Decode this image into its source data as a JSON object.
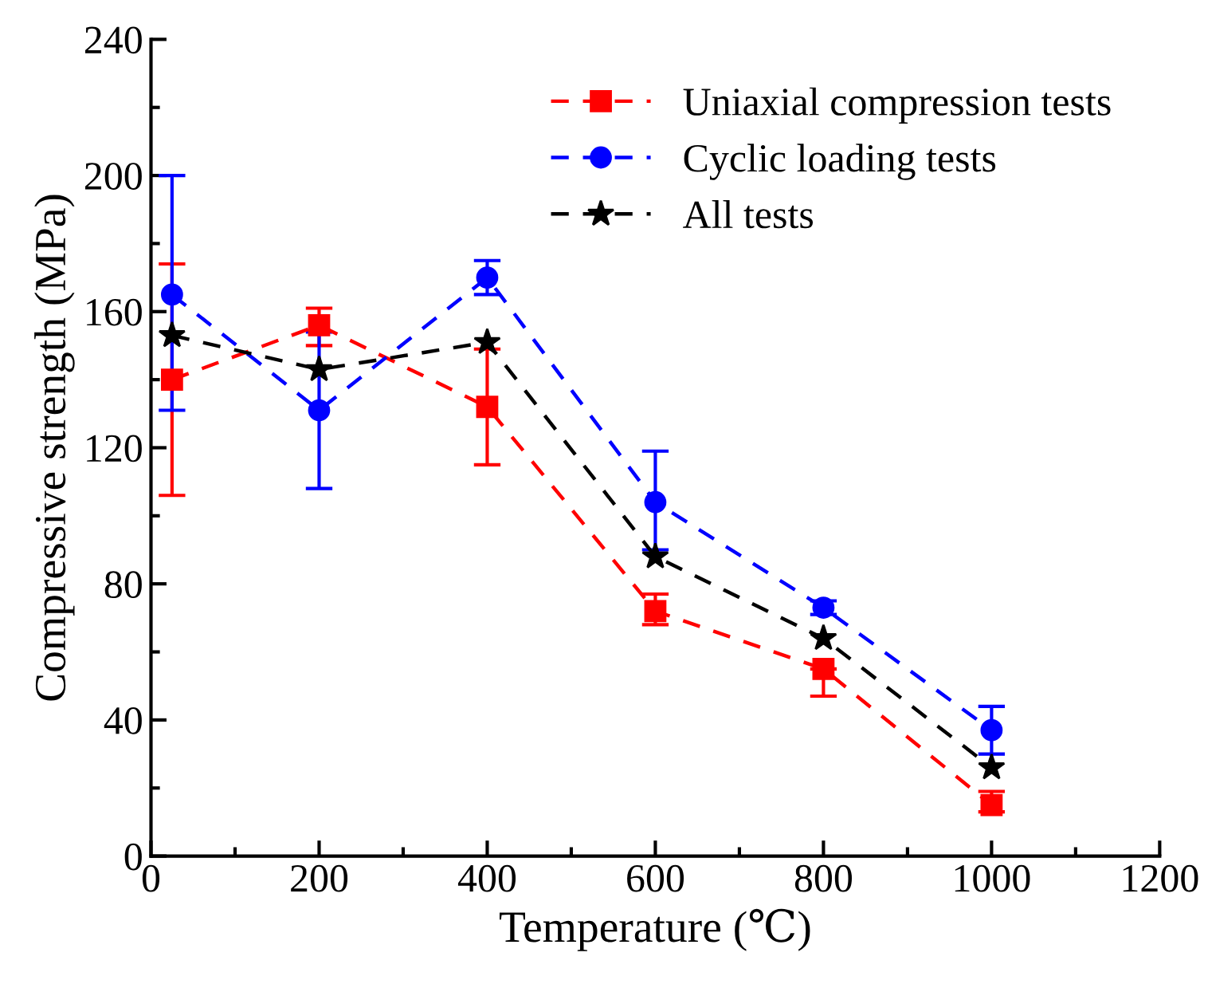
{
  "chart_data": {
    "type": "line",
    "xlabel": "Temperature (℃)",
    "ylabel": "Compressive strength (MPa)",
    "x": [
      25,
      200,
      400,
      600,
      800,
      1000
    ],
    "xlim": [
      0,
      1200
    ],
    "xticks": [
      0,
      200,
      400,
      600,
      800,
      1000,
      1200
    ],
    "ylim": [
      0,
      240
    ],
    "yticks": [
      0,
      40,
      80,
      120,
      160,
      200,
      240
    ],
    "legend": "top right",
    "line_style": "dashed",
    "grid": false,
    "series": [
      {
        "name": "Uniaxial compression tests",
        "color": "#ff0000",
        "marker": "square",
        "values": [
          140,
          156,
          132,
          72,
          55,
          15
        ],
        "errors": [
          [
            106,
            174
          ],
          [
            150,
            161
          ],
          [
            115,
            149
          ],
          [
            68,
            77
          ],
          [
            47,
            55
          ],
          [
            13,
            19
          ]
        ]
      },
      {
        "name": "Cyclic loading tests",
        "color": "#0000ff",
        "marker": "circle",
        "values": [
          165,
          131,
          170,
          104,
          73,
          37
        ],
        "errors": [
          [
            131,
            200
          ],
          [
            108,
            154
          ],
          [
            165,
            175
          ],
          [
            90,
            119
          ],
          [
            71,
            75
          ],
          [
            30,
            44
          ]
        ]
      },
      {
        "name": "All tests",
        "color": "#000000",
        "marker": "star",
        "values": [
          153,
          143,
          151,
          88,
          64,
          26
        ]
      }
    ]
  }
}
